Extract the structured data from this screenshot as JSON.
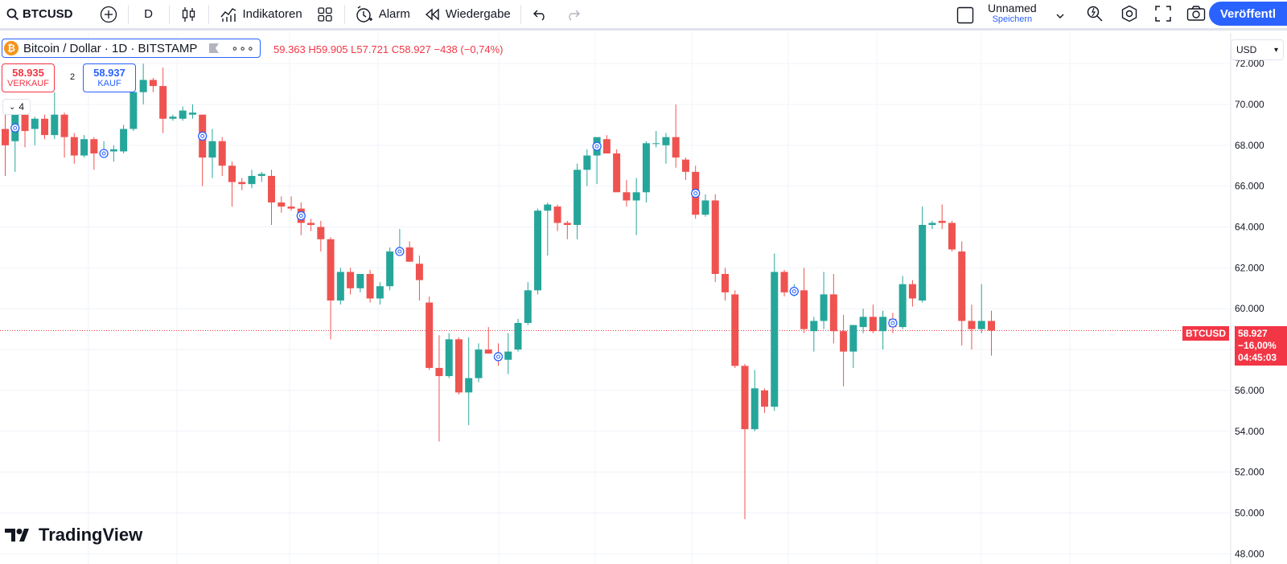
{
  "toolbar": {
    "symbol": "BTCUSD",
    "interval": "D",
    "indicators_label": "Indikatoren",
    "alarm_label": "Alarm",
    "replay_label": "Wiedergabe",
    "layout_name": "Unnamed",
    "layout_save": "Speichern",
    "publish_label": "Veröffentl"
  },
  "legend": {
    "title": "Bitcoin / Dollar · 1D · BITSTAMP",
    "ohlc": "59.363 H59.905 L57.721 C58.927 −438 (−0,74%)",
    "sell_price": "58.935",
    "sell_label": "VERKAUF",
    "spread": "2",
    "buy_price": "58.937",
    "buy_label": "KAUF",
    "collapse_count": "4"
  },
  "price_scale": {
    "currency": "USD",
    "ticks": [
      "72.000",
      "70.000",
      "68.000",
      "66.000",
      "64.000",
      "62.000",
      "60.000",
      "56.000",
      "54.000",
      "52.000",
      "50.000",
      "48.000"
    ]
  },
  "last_price": {
    "symbol_label": "BTCUSD",
    "price": "58.927",
    "change": "−16,00%",
    "countdown": "04:45:03"
  },
  "brand": "TradingView",
  "colors": {
    "up": "#26a69a",
    "down": "#ef5350",
    "accent": "#2962ff"
  },
  "chart_data": {
    "type": "candlestick",
    "ylim": [
      47500,
      73500
    ],
    "candles": [
      {
        "o": 68800,
        "h": 70000,
        "l": 66500,
        "c": 68000
      },
      {
        "o": 68200,
        "h": 69700,
        "l": 66700,
        "c": 69500
      },
      {
        "o": 69500,
        "h": 70000,
        "l": 67900,
        "c": 68700
      },
      {
        "o": 68800,
        "h": 69400,
        "l": 68000,
        "c": 69300
      },
      {
        "o": 69300,
        "h": 69500,
        "l": 68300,
        "c": 68500
      },
      {
        "o": 68500,
        "h": 70600,
        "l": 68300,
        "c": 69500
      },
      {
        "o": 69500,
        "h": 69600,
        "l": 67400,
        "c": 68400
      },
      {
        "o": 68400,
        "h": 68600,
        "l": 67100,
        "c": 67500
      },
      {
        "o": 67500,
        "h": 68500,
        "l": 67400,
        "c": 68300
      },
      {
        "o": 68300,
        "h": 68400,
        "l": 66800,
        "c": 67600
      },
      {
        "o": 67500,
        "h": 68200,
        "l": 67400,
        "c": 67700
      },
      {
        "o": 67700,
        "h": 68000,
        "l": 67200,
        "c": 67800
      },
      {
        "o": 67700,
        "h": 69000,
        "l": 67600,
        "c": 68800
      },
      {
        "o": 68800,
        "h": 70900,
        "l": 68700,
        "c": 70600
      },
      {
        "o": 70600,
        "h": 72000,
        "l": 70000,
        "c": 71200
      },
      {
        "o": 71200,
        "h": 71300,
        "l": 70600,
        "c": 70900
      },
      {
        "o": 70900,
        "h": 71800,
        "l": 68600,
        "c": 69300
      },
      {
        "o": 69300,
        "h": 69500,
        "l": 69200,
        "c": 69400
      },
      {
        "o": 69300,
        "h": 69900,
        "l": 69200,
        "c": 69700
      },
      {
        "o": 69500,
        "h": 70000,
        "l": 69300,
        "c": 69600
      },
      {
        "o": 69500,
        "h": 69500,
        "l": 66000,
        "c": 67400
      },
      {
        "o": 67400,
        "h": 68800,
        "l": 66400,
        "c": 68200
      },
      {
        "o": 68200,
        "h": 68400,
        "l": 66500,
        "c": 67000
      },
      {
        "o": 67000,
        "h": 67200,
        "l": 65000,
        "c": 66200
      },
      {
        "o": 66200,
        "h": 66400,
        "l": 65800,
        "c": 66100
      },
      {
        "o": 66100,
        "h": 66800,
        "l": 65900,
        "c": 66500
      },
      {
        "o": 66500,
        "h": 66700,
        "l": 66200,
        "c": 66600
      },
      {
        "o": 66500,
        "h": 66800,
        "l": 64100,
        "c": 65200
      },
      {
        "o": 65200,
        "h": 65500,
        "l": 64700,
        "c": 65000
      },
      {
        "o": 65000,
        "h": 65500,
        "l": 64800,
        "c": 64900
      },
      {
        "o": 64900,
        "h": 65200,
        "l": 63600,
        "c": 64200
      },
      {
        "o": 64200,
        "h": 64400,
        "l": 63800,
        "c": 64100
      },
      {
        "o": 64000,
        "h": 64300,
        "l": 62800,
        "c": 63400
      },
      {
        "o": 63400,
        "h": 63500,
        "l": 58500,
        "c": 60400
      },
      {
        "o": 60400,
        "h": 62000,
        "l": 60200,
        "c": 61800
      },
      {
        "o": 61800,
        "h": 62000,
        "l": 60700,
        "c": 61000
      },
      {
        "o": 61000,
        "h": 61700,
        "l": 60800,
        "c": 61700
      },
      {
        "o": 61700,
        "h": 61900,
        "l": 60300,
        "c": 60500
      },
      {
        "o": 60500,
        "h": 61300,
        "l": 60200,
        "c": 61100
      },
      {
        "o": 61100,
        "h": 63000,
        "l": 60900,
        "c": 62800
      },
      {
        "o": 62700,
        "h": 63900,
        "l": 62600,
        "c": 62900
      },
      {
        "o": 63000,
        "h": 63300,
        "l": 62300,
        "c": 62300
      },
      {
        "o": 62200,
        "h": 62600,
        "l": 60400,
        "c": 61400
      },
      {
        "o": 60300,
        "h": 60600,
        "l": 57000,
        "c": 57100
      },
      {
        "o": 57100,
        "h": 58700,
        "l": 53500,
        "c": 56700
      },
      {
        "o": 56700,
        "h": 58800,
        "l": 56600,
        "c": 58500
      },
      {
        "o": 58500,
        "h": 58600,
        "l": 55800,
        "c": 55900
      },
      {
        "o": 55900,
        "h": 58600,
        "l": 54300,
        "c": 56600
      },
      {
        "o": 56600,
        "h": 58300,
        "l": 56400,
        "c": 58000
      },
      {
        "o": 58000,
        "h": 59100,
        "l": 57800,
        "c": 57800
      },
      {
        "o": 57700,
        "h": 58300,
        "l": 57200,
        "c": 57600
      },
      {
        "o": 57500,
        "h": 58800,
        "l": 56800,
        "c": 57900
      },
      {
        "o": 58000,
        "h": 59500,
        "l": 57900,
        "c": 59300
      },
      {
        "o": 59300,
        "h": 61300,
        "l": 59200,
        "c": 60900
      },
      {
        "o": 60900,
        "h": 64900,
        "l": 60700,
        "c": 64800
      },
      {
        "o": 64800,
        "h": 65200,
        "l": 62600,
        "c": 65100
      },
      {
        "o": 65000,
        "h": 65100,
        "l": 63800,
        "c": 64200
      },
      {
        "o": 64200,
        "h": 64300,
        "l": 63400,
        "c": 64100
      },
      {
        "o": 64100,
        "h": 67100,
        "l": 63400,
        "c": 66800
      },
      {
        "o": 66800,
        "h": 67800,
        "l": 66000,
        "c": 67500
      },
      {
        "o": 67500,
        "h": 68300,
        "l": 66100,
        "c": 68400
      },
      {
        "o": 68300,
        "h": 68500,
        "l": 67600,
        "c": 67600
      },
      {
        "o": 67600,
        "h": 67800,
        "l": 65900,
        "c": 65700
      },
      {
        "o": 65700,
        "h": 66300,
        "l": 65000,
        "c": 65300
      },
      {
        "o": 65300,
        "h": 66400,
        "l": 63600,
        "c": 65700
      },
      {
        "o": 65700,
        "h": 68200,
        "l": 65200,
        "c": 68100
      },
      {
        "o": 68100,
        "h": 68700,
        "l": 67900,
        "c": 68100
      },
      {
        "o": 68000,
        "h": 68600,
        "l": 67100,
        "c": 68400
      },
      {
        "o": 68400,
        "h": 70000,
        "l": 66900,
        "c": 67400
      },
      {
        "o": 67300,
        "h": 67400,
        "l": 66300,
        "c": 66700
      },
      {
        "o": 66700,
        "h": 67000,
        "l": 64400,
        "c": 64600
      },
      {
        "o": 64600,
        "h": 65600,
        "l": 64500,
        "c": 65300
      },
      {
        "o": 65300,
        "h": 65600,
        "l": 61300,
        "c": 61700
      },
      {
        "o": 61700,
        "h": 62000,
        "l": 60400,
        "c": 60800
      },
      {
        "o": 60700,
        "h": 60900,
        "l": 57100,
        "c": 57200
      },
      {
        "o": 57200,
        "h": 57300,
        "l": 49700,
        "c": 54100
      },
      {
        "o": 54100,
        "h": 57000,
        "l": 54000,
        "c": 56100
      },
      {
        "o": 56000,
        "h": 56100,
        "l": 54900,
        "c": 55200
      },
      {
        "o": 55200,
        "h": 62700,
        "l": 55000,
        "c": 61800
      },
      {
        "o": 61800,
        "h": 61900,
        "l": 60600,
        "c": 60800
      },
      {
        "o": 60800,
        "h": 61200,
        "l": 60600,
        "c": 60900
      },
      {
        "o": 60900,
        "h": 62000,
        "l": 58800,
        "c": 59000
      },
      {
        "o": 58900,
        "h": 59600,
        "l": 57900,
        "c": 59400
      },
      {
        "o": 59400,
        "h": 61800,
        "l": 59000,
        "c": 60700
      },
      {
        "o": 60700,
        "h": 61700,
        "l": 58300,
        "c": 58900
      },
      {
        "o": 58900,
        "h": 59700,
        "l": 56200,
        "c": 57900
      },
      {
        "o": 57900,
        "h": 59200,
        "l": 57100,
        "c": 59200
      },
      {
        "o": 59100,
        "h": 60000,
        "l": 58800,
        "c": 59600
      },
      {
        "o": 59600,
        "h": 60200,
        "l": 58800,
        "c": 58900
      },
      {
        "o": 58900,
        "h": 59900,
        "l": 58000,
        "c": 59600
      },
      {
        "o": 59500,
        "h": 59800,
        "l": 58800,
        "c": 59100
      },
      {
        "o": 59100,
        "h": 61600,
        "l": 59000,
        "c": 61200
      },
      {
        "o": 61200,
        "h": 61400,
        "l": 60100,
        "c": 60500
      },
      {
        "o": 60400,
        "h": 65000,
        "l": 60300,
        "c": 64100
      },
      {
        "o": 64100,
        "h": 64300,
        "l": 63900,
        "c": 64200
      },
      {
        "o": 64300,
        "h": 65100,
        "l": 63900,
        "c": 64200
      },
      {
        "o": 64200,
        "h": 64300,
        "l": 62800,
        "c": 62900
      },
      {
        "o": 62800,
        "h": 63300,
        "l": 58200,
        "c": 59400
      },
      {
        "o": 59400,
        "h": 60200,
        "l": 58000,
        "c": 59000
      },
      {
        "o": 59000,
        "h": 61200,
        "l": 58800,
        "c": 59400
      },
      {
        "o": 59400,
        "h": 59900,
        "l": 57700,
        "c": 58927
      }
    ],
    "markers": [
      1,
      10,
      20,
      30,
      40,
      50,
      60,
      70,
      80,
      90
    ]
  }
}
